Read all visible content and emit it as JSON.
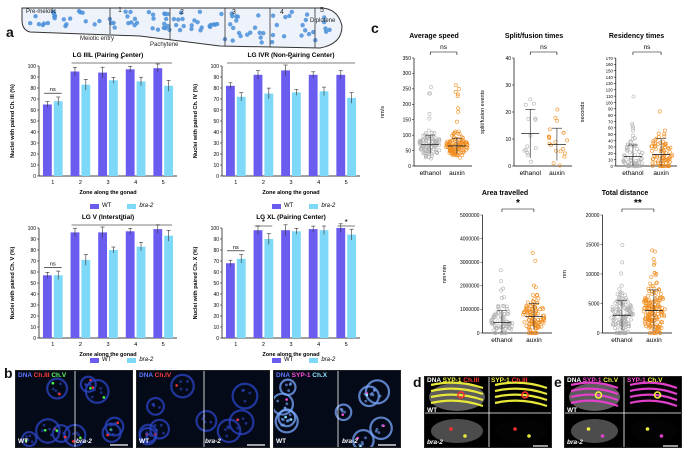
{
  "gonad": {
    "labels": [
      "Pre-meiotic",
      "1",
      "2",
      "3",
      "4",
      "5",
      "Diplotene"
    ],
    "sublabels": [
      "Meiotic entry",
      "Pachytene"
    ]
  },
  "panel_labels": {
    "a": "a",
    "b": "b",
    "c": "c",
    "d": "d",
    "e": "e"
  },
  "legend": {
    "wt": "WT",
    "bra2": "bra-2"
  },
  "colors": {
    "wt": "#6b5cf0",
    "bra2": "#7ed8f7",
    "ethanol": "#b0b0b0",
    "auxin": "#f08c1e"
  },
  "chart_data": [
    {
      "type": "bar",
      "id": "a1",
      "title": "LG IIIL (Pairing Center)",
      "xlabel": "Zone along the gonad",
      "ylabel": "Nuclei with paired Ch. III (%)",
      "categories": [
        "1",
        "2",
        "3",
        "4",
        "5"
      ],
      "ylim": [
        0,
        100
      ],
      "yticks": [
        "0",
        "10",
        "20",
        "30",
        "40",
        "50",
        "60",
        "70",
        "80",
        "90",
        "100"
      ],
      "series": [
        {
          "name": "WT",
          "values": [
            65,
            95,
            94,
            97,
            98
          ]
        },
        {
          "name": "bra-2",
          "values": [
            68,
            83,
            87,
            86,
            82
          ]
        }
      ],
      "annotations": {
        "ns": "ns",
        "star": "*"
      }
    },
    {
      "type": "bar",
      "id": "a2",
      "title": "LG IVR (Non-Pairing Center)",
      "xlabel": "Zone along the gonad",
      "ylabel": "Nuclei with paired Ch. IV (%)",
      "categories": [
        "1",
        "2",
        "3",
        "4",
        "5"
      ],
      "ylim": [
        0,
        100
      ],
      "yticks": [
        "0",
        "10",
        "20",
        "30",
        "40",
        "50",
        "60",
        "70",
        "80",
        "90",
        "100"
      ],
      "series": [
        {
          "name": "WT",
          "values": [
            82,
            92,
            96,
            92,
            92
          ]
        },
        {
          "name": "bra-2",
          "values": [
            72,
            75,
            76,
            77,
            71
          ]
        }
      ],
      "annotations": {
        "star": "*"
      }
    },
    {
      "type": "bar",
      "id": "a3",
      "title": "LG V (Interstitial)",
      "xlabel": "Zone along the gonad",
      "ylabel": "Nuclei with paired Ch. V (%)",
      "categories": [
        "1",
        "2",
        "3",
        "4",
        "5"
      ],
      "ylim": [
        0,
        100
      ],
      "yticks": [
        "0",
        "10",
        "20",
        "30",
        "40",
        "50",
        "60",
        "70",
        "80",
        "90",
        "100"
      ],
      "series": [
        {
          "name": "WT",
          "values": [
            57,
            96,
            96,
            97,
            99
          ]
        },
        {
          "name": "bra-2",
          "values": [
            57,
            71,
            80,
            83,
            93
          ]
        }
      ],
      "annotations": {
        "ns": "ns",
        "star": "*"
      }
    },
    {
      "type": "bar",
      "id": "a4",
      "title": "LG XL (Pairing Center)",
      "xlabel": "Zone along the gonad",
      "ylabel": "Nuclei with paired Ch. X (%)",
      "categories": [
        "1",
        "2",
        "3",
        "4",
        "5"
      ],
      "ylim": [
        0,
        100
      ],
      "yticks": [
        "0",
        "10",
        "20",
        "30",
        "40",
        "50",
        "60",
        "70",
        "80",
        "90",
        "100"
      ],
      "series": [
        {
          "name": "WT",
          "values": [
            68,
            98,
            98,
            99,
            100
          ]
        },
        {
          "name": "bra-2",
          "values": [
            72,
            90,
            97,
            98,
            94
          ]
        }
      ],
      "annotations": {
        "ns": "ns",
        "star": "*"
      }
    },
    {
      "type": "scatter",
      "id": "c1",
      "title": "Average speed",
      "ylabel": "nm/s",
      "categories": [
        "ethanol",
        "auxin"
      ],
      "ylim": [
        0,
        350
      ],
      "yticks": [
        "0",
        "50",
        "100",
        "150",
        "200",
        "250",
        "300",
        "350"
      ],
      "means": [
        70,
        65
      ],
      "sd": [
        30,
        25
      ],
      "annotation": "ns"
    },
    {
      "type": "scatter",
      "id": "c2",
      "title": "Split/fusion times",
      "ylabel": "split/fusion events",
      "categories": [
        "ethanol",
        "auxin"
      ],
      "ylim": [
        0,
        40
      ],
      "yticks": [
        "0",
        "10",
        "20",
        "30",
        "40"
      ],
      "means": [
        12,
        8
      ],
      "sd": [
        9,
        6
      ],
      "annotation": "ns"
    },
    {
      "type": "scatter",
      "id": "c3",
      "title": "Residency times",
      "ylabel": "seconds",
      "categories": [
        "ethanol",
        "auxin"
      ],
      "ylim": [
        0,
        170
      ],
      "yticks": [
        "0",
        "10",
        "20",
        "30",
        "40",
        "50",
        "60",
        "70",
        "80",
        "90",
        "100",
        "110",
        "120",
        "130",
        "140",
        "150",
        "160",
        "170"
      ],
      "means": [
        15,
        18
      ],
      "sd": [
        18,
        25
      ],
      "annotation": "ns"
    },
    {
      "type": "scatter",
      "id": "c4",
      "title": "Area travelled",
      "ylabel": "nm×nm",
      "categories": [
        "ethanol",
        "auxin"
      ],
      "ylim": [
        0,
        5000000
      ],
      "yticks": [
        "0",
        "1000000",
        "2000000",
        "3000000",
        "4000000",
        "5000000"
      ],
      "means": [
        450000,
        700000
      ],
      "sd": [
        500000,
        550000
      ],
      "annotation": "*"
    },
    {
      "type": "scatter",
      "id": "c5",
      "title": "Total distance",
      "ylabel": "nm",
      "categories": [
        "ethanol",
        "auxin"
      ],
      "ylim": [
        0,
        20000
      ],
      "yticks": [
        "0",
        "5000",
        "10000",
        "15000",
        "20000"
      ],
      "means": [
        3000,
        3800
      ],
      "sd": [
        2500,
        3500
      ],
      "annotation": "**"
    }
  ],
  "micro": {
    "b1": {
      "dna": "DNA",
      "ch1": "Ch.III",
      "ch2": "Ch.V",
      "wt": "WT",
      "mut": "bra-2"
    },
    "b2": {
      "dna": "DNA",
      "ch1": "Ch.IV",
      "wt": "WT",
      "mut": "bra-2"
    },
    "b3": {
      "dna": "DNA",
      "syp": "SYP-1",
      "ch": "Ch.X",
      "wt": "WT",
      "mut": "bra-2"
    },
    "d": {
      "dna": "DNA",
      "syp": "SYP-1",
      "ch": "Ch.III",
      "wt": "WT",
      "mut": "bra-2"
    },
    "e": {
      "dna": "DNA",
      "syp": "SYP-1",
      "ch": "Ch.V",
      "wt": "WT",
      "mut": "bra-2"
    }
  }
}
